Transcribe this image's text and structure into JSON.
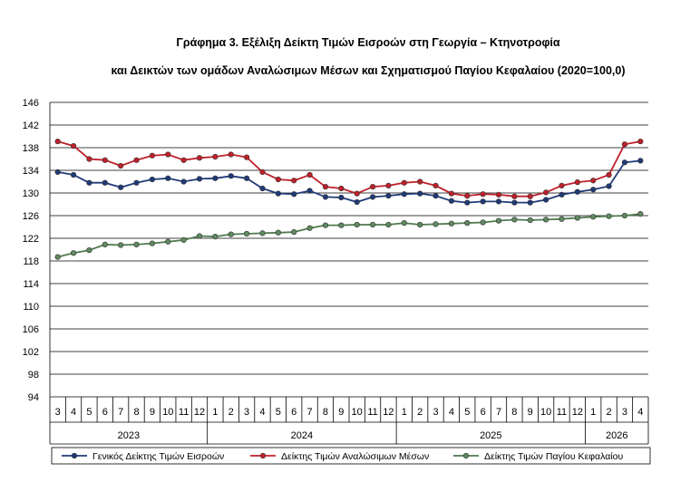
{
  "title_line1": "Γράφημα 3. Εξέλιξη Δείκτη Τιμών Εισροών στη Γεωργία – Κτηνοτροφία",
  "title_line2": "και Δεικτών των ομάδων Αναλώσιμων Μέσων και Σχηματισμού Παγίου Κεφαλαίου (2020=100,0)",
  "colors": {
    "general": "#1f3a78",
    "consumables": "#c0202a",
    "fixed_capital": "#4f7a4f",
    "marker_fill_general": "#1f3a78",
    "marker_fill_consumables": "#c0202a",
    "marker_fill_fixed": "#5f8a5f"
  },
  "chart_data": {
    "type": "line",
    "title": "Γράφημα 3. Εξέλιξη Δείκτη Τιμών Εισροών στη Γεωργία – Κτηνοτροφία και Δεικτών των ομάδων Αναλώσιμων Μέσων και Σχηματισμού Παγίου Κεφαλαίου (2020=100,0)",
    "xlabel": "",
    "ylabel": "",
    "ylim": [
      94,
      146
    ],
    "yticks": [
      "146",
      "142",
      "138",
      "134",
      "130",
      "126",
      "122",
      "118",
      "114",
      "110",
      "106",
      "102",
      "98",
      "94"
    ],
    "grid": true,
    "legend_position": "bottom",
    "months": [
      "3",
      "4",
      "5",
      "6",
      "7",
      "8",
      "9",
      "10",
      "11",
      "12",
      "1",
      "2",
      "3",
      "4",
      "5",
      "6",
      "7",
      "8",
      "9",
      "10",
      "11",
      "12",
      "1",
      "2",
      "3",
      "4",
      "5",
      "6",
      "7",
      "8",
      "9",
      "10",
      "11",
      "12",
      "1",
      "2",
      "3",
      "4"
    ],
    "years": [
      {
        "label": "2023",
        "count": 10
      },
      {
        "label": "2024",
        "count": 12
      },
      {
        "label": "2025",
        "count": 12
      },
      {
        "label": "2026",
        "count": 4
      }
    ],
    "series": [
      {
        "name": "Γενικός Δείκτης Τιμών Εισροών",
        "color_key": "general",
        "values": [
          133.7,
          133.2,
          131.8,
          131.8,
          131.0,
          131.8,
          132.4,
          132.6,
          132.0,
          132.5,
          132.6,
          133.0,
          132.6,
          130.8,
          129.9,
          129.8,
          130.4,
          129.3,
          129.2,
          128.4,
          129.3,
          129.5,
          129.8,
          129.9,
          129.5,
          128.6,
          128.3,
          128.5,
          128.5,
          128.3,
          128.3,
          128.8,
          129.7,
          130.2,
          130.6,
          131.2,
          135.4,
          135.7
        ]
      },
      {
        "name": "Δείκτης Τιμών Αναλώσιμων Μέσων",
        "color_key": "consumables",
        "values": [
          139.1,
          138.3,
          136.0,
          135.8,
          134.8,
          135.8,
          136.6,
          136.8,
          135.8,
          136.2,
          136.4,
          136.8,
          136.3,
          133.7,
          132.4,
          132.2,
          133.2,
          131.1,
          130.8,
          129.9,
          131.1,
          131.3,
          131.8,
          132.0,
          131.3,
          129.9,
          129.5,
          129.8,
          129.7,
          129.4,
          129.4,
          130.1,
          131.3,
          131.9,
          132.2,
          133.2,
          138.6,
          139.1
        ]
      },
      {
        "name": "Δείκτης Τιμών Παγίου Κεφαλαίου",
        "color_key": "fixed_capital",
        "values": [
          118.7,
          119.4,
          119.9,
          120.9,
          120.8,
          120.9,
          121.1,
          121.4,
          121.7,
          122.4,
          122.3,
          122.7,
          122.8,
          122.9,
          123.0,
          123.1,
          123.8,
          124.3,
          124.3,
          124.4,
          124.4,
          124.4,
          124.7,
          124.4,
          124.5,
          124.6,
          124.7,
          124.8,
          125.1,
          125.3,
          125.2,
          125.3,
          125.4,
          125.6,
          125.8,
          125.9,
          126.0,
          126.3
        ]
      }
    ]
  }
}
